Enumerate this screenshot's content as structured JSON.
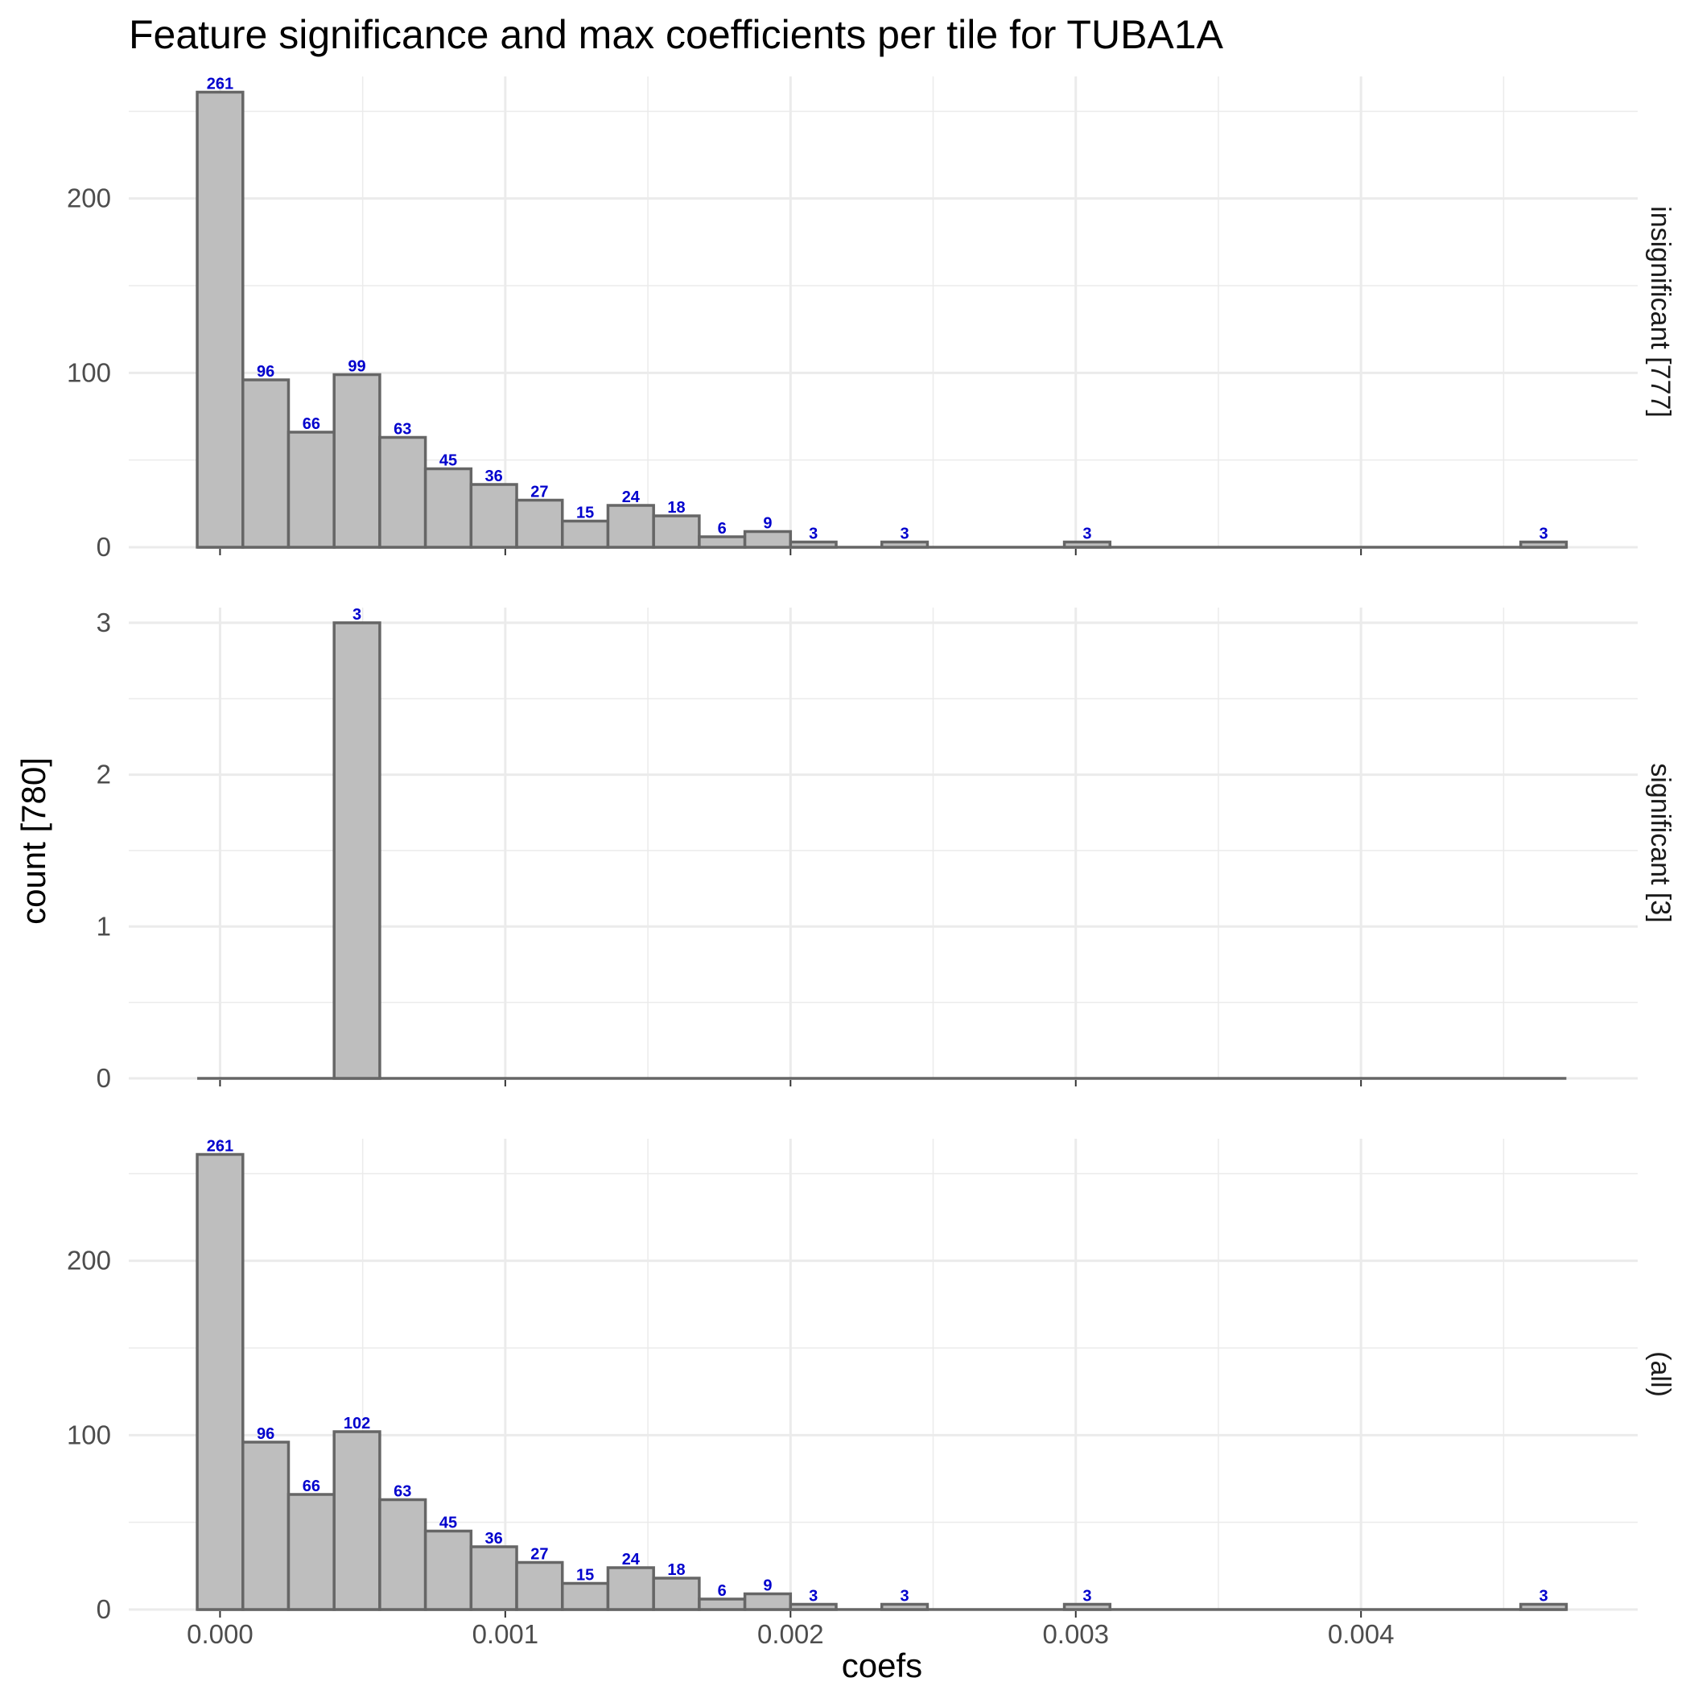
{
  "chart_data": {
    "type": "bar",
    "title": "Feature significance and max coefficients per tile for TUBA1A",
    "xlabel": "coefs",
    "ylabel": "count [780]",
    "xlim": [
      -0.00032,
      0.00497
    ],
    "x_ticks": [
      "0.000",
      "0.001",
      "0.002",
      "0.003",
      "0.004"
    ],
    "x_tick_values": [
      0,
      0.001,
      0.002,
      0.003,
      0.004
    ],
    "bin_width": 0.00016,
    "bin_start": -8e-05,
    "grid": true,
    "panels": [
      {
        "strip": "insignificant [777]",
        "ylim": [
          0,
          270
        ],
        "y_ticks": [
          "0",
          "100",
          "200"
        ],
        "y_tick_values": [
          0,
          100,
          200
        ],
        "y_minor": [
          50,
          150,
          250
        ],
        "bins": [
          {
            "x": 0.0,
            "count": 261
          },
          {
            "x": 0.00016,
            "count": 96
          },
          {
            "x": 0.00032,
            "count": 66
          },
          {
            "x": 0.00048,
            "count": 99
          },
          {
            "x": 0.00064,
            "count": 63
          },
          {
            "x": 0.0008,
            "count": 45
          },
          {
            "x": 0.00096,
            "count": 36
          },
          {
            "x": 0.00112,
            "count": 27
          },
          {
            "x": 0.00128,
            "count": 15
          },
          {
            "x": 0.00144,
            "count": 24
          },
          {
            "x": 0.0016,
            "count": 18
          },
          {
            "x": 0.00176,
            "count": 6
          },
          {
            "x": 0.00192,
            "count": 9
          },
          {
            "x": 0.00208,
            "count": 3
          },
          {
            "x": 0.0024,
            "count": 3
          },
          {
            "x": 0.00304,
            "count": 3
          },
          {
            "x": 0.00464,
            "count": 3
          }
        ]
      },
      {
        "strip": "significant [3]",
        "ylim": [
          0,
          3.1
        ],
        "y_ticks": [
          "0",
          "1",
          "2",
          "3"
        ],
        "y_tick_values": [
          0,
          1,
          2,
          3
        ],
        "y_minor": [
          0.5,
          1.5,
          2.5
        ],
        "bins": [
          {
            "x": 0.00048,
            "count": 3
          }
        ]
      },
      {
        "strip": "(all)",
        "ylim": [
          0,
          270
        ],
        "y_ticks": [
          "0",
          "100",
          "200"
        ],
        "y_tick_values": [
          0,
          100,
          200
        ],
        "y_minor": [
          50,
          150,
          250
        ],
        "bins": [
          {
            "x": 0.0,
            "count": 261
          },
          {
            "x": 0.00016,
            "count": 96
          },
          {
            "x": 0.00032,
            "count": 66
          },
          {
            "x": 0.00048,
            "count": 102
          },
          {
            "x": 0.00064,
            "count": 63
          },
          {
            "x": 0.0008,
            "count": 45
          },
          {
            "x": 0.00096,
            "count": 36
          },
          {
            "x": 0.00112,
            "count": 27
          },
          {
            "x": 0.00128,
            "count": 15
          },
          {
            "x": 0.00144,
            "count": 24
          },
          {
            "x": 0.0016,
            "count": 18
          },
          {
            "x": 0.00176,
            "count": 6
          },
          {
            "x": 0.00192,
            "count": 9
          },
          {
            "x": 0.00208,
            "count": 3
          },
          {
            "x": 0.0024,
            "count": 3
          },
          {
            "x": 0.00304,
            "count": 3
          },
          {
            "x": 0.00464,
            "count": 3
          }
        ]
      }
    ],
    "colors": {
      "bar_fill": "#bebebe",
      "bar_stroke": "#666666",
      "data_label": "#0000cd",
      "grid": "#ebebeb"
    }
  }
}
